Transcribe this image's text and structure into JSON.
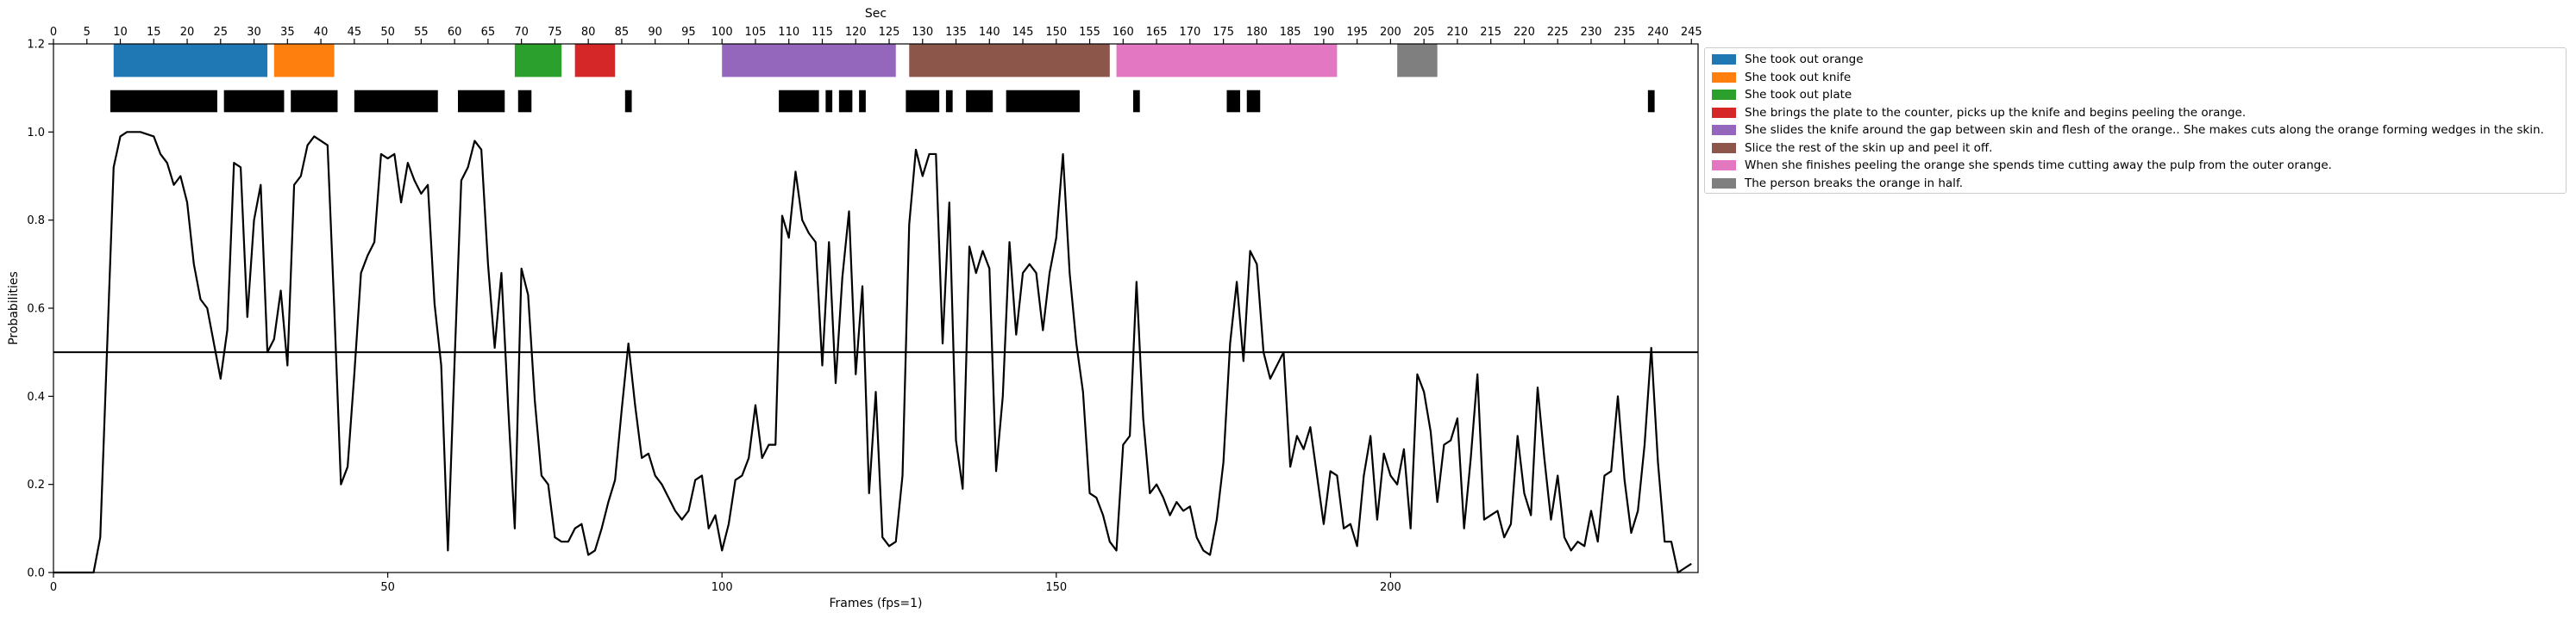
{
  "chart_data": {
    "type": "line",
    "title": "",
    "xlabel": "Frames (fps=1)",
    "ylabel": "Probabilities",
    "top_xlabel": "Sec",
    "xlim": [
      0,
      246
    ],
    "ylim": [
      0,
      1.2
    ],
    "x_ticks": [
      0,
      50,
      100,
      150,
      200
    ],
    "y_ticks": [
      "0.0",
      "0.2",
      "0.4",
      "0.6",
      "0.8",
      "1.0",
      "1.2"
    ],
    "top_ticks": [
      0,
      5,
      10,
      15,
      20,
      25,
      30,
      35,
      40,
      45,
      50,
      55,
      60,
      65,
      70,
      75,
      80,
      85,
      90,
      95,
      100,
      105,
      110,
      115,
      120,
      125,
      130,
      135,
      140,
      145,
      150,
      155,
      160,
      165,
      170,
      175,
      180,
      185,
      190,
      195,
      200,
      205,
      210,
      215,
      220,
      225,
      230,
      235,
      240,
      245
    ],
    "threshold": 0.5,
    "grid": false,
    "legend_position": "outside-right",
    "line_color": "#000000",
    "probabilities": [
      [
        0,
        0.0
      ],
      [
        6,
        0.0
      ],
      [
        7,
        0.08
      ],
      [
        8,
        0.5
      ],
      [
        9,
        0.92
      ],
      [
        10,
        0.99
      ],
      [
        11,
        1.0
      ],
      [
        13,
        1.0
      ],
      [
        15,
        0.99
      ],
      [
        16,
        0.95
      ],
      [
        17,
        0.93
      ],
      [
        18,
        0.88
      ],
      [
        19,
        0.9
      ],
      [
        20,
        0.84
      ],
      [
        21,
        0.7
      ],
      [
        22,
        0.62
      ],
      [
        23,
        0.6
      ],
      [
        24,
        0.52
      ],
      [
        25,
        0.44
      ],
      [
        26,
        0.55
      ],
      [
        27,
        0.93
      ],
      [
        28,
        0.92
      ],
      [
        29,
        0.58
      ],
      [
        30,
        0.8
      ],
      [
        31,
        0.88
      ],
      [
        32,
        0.5
      ],
      [
        33,
        0.53
      ],
      [
        34,
        0.64
      ],
      [
        35,
        0.47
      ],
      [
        36,
        0.88
      ],
      [
        37,
        0.9
      ],
      [
        38,
        0.97
      ],
      [
        39,
        0.99
      ],
      [
        40,
        0.98
      ],
      [
        41,
        0.97
      ],
      [
        42,
        0.6
      ],
      [
        43,
        0.2
      ],
      [
        44,
        0.24
      ],
      [
        45,
        0.45
      ],
      [
        46,
        0.68
      ],
      [
        47,
        0.72
      ],
      [
        48,
        0.75
      ],
      [
        49,
        0.95
      ],
      [
        50,
        0.94
      ],
      [
        51,
        0.95
      ],
      [
        52,
        0.84
      ],
      [
        53,
        0.93
      ],
      [
        54,
        0.89
      ],
      [
        55,
        0.86
      ],
      [
        56,
        0.88
      ],
      [
        57,
        0.61
      ],
      [
        58,
        0.47
      ],
      [
        59,
        0.05
      ],
      [
        60,
        0.48
      ],
      [
        61,
        0.89
      ],
      [
        62,
        0.92
      ],
      [
        63,
        0.98
      ],
      [
        64,
        0.96
      ],
      [
        65,
        0.7
      ],
      [
        66,
        0.51
      ],
      [
        67,
        0.68
      ],
      [
        68,
        0.38
      ],
      [
        69,
        0.1
      ],
      [
        70,
        0.69
      ],
      [
        71,
        0.63
      ],
      [
        72,
        0.39
      ],
      [
        73,
        0.22
      ],
      [
        74,
        0.2
      ],
      [
        75,
        0.08
      ],
      [
        76,
        0.07
      ],
      [
        77,
        0.07
      ],
      [
        78,
        0.1
      ],
      [
        79,
        0.11
      ],
      [
        80,
        0.04
      ],
      [
        81,
        0.05
      ],
      [
        82,
        0.1
      ],
      [
        83,
        0.16
      ],
      [
        84,
        0.21
      ],
      [
        85,
        0.37
      ],
      [
        86,
        0.52
      ],
      [
        87,
        0.38
      ],
      [
        88,
        0.26
      ],
      [
        89,
        0.27
      ],
      [
        90,
        0.22
      ],
      [
        91,
        0.2
      ],
      [
        92,
        0.17
      ],
      [
        93,
        0.14
      ],
      [
        94,
        0.12
      ],
      [
        95,
        0.14
      ],
      [
        96,
        0.21
      ],
      [
        97,
        0.22
      ],
      [
        98,
        0.1
      ],
      [
        99,
        0.13
      ],
      [
        100,
        0.05
      ],
      [
        101,
        0.11
      ],
      [
        102,
        0.21
      ],
      [
        103,
        0.22
      ],
      [
        104,
        0.26
      ],
      [
        105,
        0.38
      ],
      [
        106,
        0.26
      ],
      [
        107,
        0.29
      ],
      [
        108,
        0.29
      ],
      [
        109,
        0.81
      ],
      [
        110,
        0.76
      ],
      [
        111,
        0.91
      ],
      [
        112,
        0.8
      ],
      [
        113,
        0.77
      ],
      [
        114,
        0.75
      ],
      [
        115,
        0.47
      ],
      [
        116,
        0.75
      ],
      [
        117,
        0.43
      ],
      [
        118,
        0.67
      ],
      [
        119,
        0.82
      ],
      [
        120,
        0.45
      ],
      [
        121,
        0.65
      ],
      [
        122,
        0.18
      ],
      [
        123,
        0.41
      ],
      [
        124,
        0.08
      ],
      [
        125,
        0.06
      ],
      [
        126,
        0.07
      ],
      [
        127,
        0.22
      ],
      [
        128,
        0.79
      ],
      [
        129,
        0.96
      ],
      [
        130,
        0.9
      ],
      [
        131,
        0.95
      ],
      [
        132,
        0.95
      ],
      [
        133,
        0.52
      ],
      [
        134,
        0.84
      ],
      [
        135,
        0.3
      ],
      [
        136,
        0.19
      ],
      [
        137,
        0.74
      ],
      [
        138,
        0.68
      ],
      [
        139,
        0.73
      ],
      [
        140,
        0.69
      ],
      [
        141,
        0.23
      ],
      [
        142,
        0.4
      ],
      [
        143,
        0.75
      ],
      [
        144,
        0.54
      ],
      [
        145,
        0.68
      ],
      [
        146,
        0.7
      ],
      [
        147,
        0.68
      ],
      [
        148,
        0.55
      ],
      [
        149,
        0.68
      ],
      [
        150,
        0.76
      ],
      [
        151,
        0.95
      ],
      [
        152,
        0.68
      ],
      [
        153,
        0.52
      ],
      [
        154,
        0.41
      ],
      [
        155,
        0.18
      ],
      [
        156,
        0.17
      ],
      [
        157,
        0.13
      ],
      [
        158,
        0.07
      ],
      [
        159,
        0.05
      ],
      [
        160,
        0.29
      ],
      [
        161,
        0.31
      ],
      [
        162,
        0.66
      ],
      [
        163,
        0.35
      ],
      [
        164,
        0.18
      ],
      [
        165,
        0.2
      ],
      [
        166,
        0.17
      ],
      [
        167,
        0.13
      ],
      [
        168,
        0.16
      ],
      [
        169,
        0.14
      ],
      [
        170,
        0.15
      ],
      [
        171,
        0.08
      ],
      [
        172,
        0.05
      ],
      [
        173,
        0.04
      ],
      [
        174,
        0.12
      ],
      [
        175,
        0.25
      ],
      [
        176,
        0.52
      ],
      [
        177,
        0.66
      ],
      [
        178,
        0.48
      ],
      [
        179,
        0.73
      ],
      [
        180,
        0.7
      ],
      [
        181,
        0.5
      ],
      [
        182,
        0.44
      ],
      [
        183,
        0.47
      ],
      [
        184,
        0.5
      ],
      [
        185,
        0.24
      ],
      [
        186,
        0.31
      ],
      [
        187,
        0.28
      ],
      [
        188,
        0.33
      ],
      [
        189,
        0.22
      ],
      [
        190,
        0.11
      ],
      [
        191,
        0.23
      ],
      [
        192,
        0.22
      ],
      [
        193,
        0.1
      ],
      [
        194,
        0.11
      ],
      [
        195,
        0.06
      ],
      [
        196,
        0.22
      ],
      [
        197,
        0.31
      ],
      [
        198,
        0.12
      ],
      [
        199,
        0.27
      ],
      [
        200,
        0.22
      ],
      [
        201,
        0.2
      ],
      [
        202,
        0.28
      ],
      [
        203,
        0.1
      ],
      [
        204,
        0.45
      ],
      [
        205,
        0.41
      ],
      [
        206,
        0.32
      ],
      [
        207,
        0.16
      ],
      [
        208,
        0.29
      ],
      [
        209,
        0.3
      ],
      [
        210,
        0.35
      ],
      [
        211,
        0.1
      ],
      [
        212,
        0.26
      ],
      [
        213,
        0.45
      ],
      [
        214,
        0.12
      ],
      [
        215,
        0.13
      ],
      [
        216,
        0.14
      ],
      [
        217,
        0.08
      ],
      [
        218,
        0.11
      ],
      [
        219,
        0.31
      ],
      [
        220,
        0.18
      ],
      [
        221,
        0.13
      ],
      [
        222,
        0.42
      ],
      [
        223,
        0.26
      ],
      [
        224,
        0.12
      ],
      [
        225,
        0.22
      ],
      [
        226,
        0.08
      ],
      [
        227,
        0.05
      ],
      [
        228,
        0.07
      ],
      [
        229,
        0.06
      ],
      [
        230,
        0.14
      ],
      [
        231,
        0.07
      ],
      [
        232,
        0.22
      ],
      [
        233,
        0.23
      ],
      [
        234,
        0.4
      ],
      [
        235,
        0.21
      ],
      [
        236,
        0.09
      ],
      [
        237,
        0.14
      ],
      [
        238,
        0.29
      ],
      [
        239,
        0.51
      ],
      [
        240,
        0.25
      ],
      [
        241,
        0.07
      ],
      [
        242,
        0.07
      ],
      [
        243,
        0.0
      ],
      [
        244,
        0.01
      ],
      [
        245,
        0.02
      ]
    ],
    "segments": [
      {
        "name": "She took out orange",
        "color": "#1f77b4",
        "start": 9,
        "end": 32
      },
      {
        "name": "She took out knife",
        "color": "#ff7f0e",
        "start": 33,
        "end": 42
      },
      {
        "name": "She took out plate",
        "color": "#2ca02c",
        "start": 69,
        "end": 76
      },
      {
        "name": "She brings the plate to the counter, picks up the knife and begins peeling the orange.",
        "color": "#d62728",
        "start": 78,
        "end": 84
      },
      {
        "name": "She slides the knife around the gap between skin and flesh of the orange.. She makes cuts along the orange forming wedges in the skin.",
        "color": "#9467bd",
        "start": 100,
        "end": 126
      },
      {
        "name": "Slice the rest of the skin up and peel it off.",
        "color": "#8c564b",
        "start": 128,
        "end": 158
      },
      {
        "name": "When she finishes peeling the orange she spends time cutting away the pulp from the outer orange.",
        "color": "#e377c2",
        "start": 159,
        "end": 192
      },
      {
        "name": "The person breaks the orange in half.",
        "color": "#7f7f7f",
        "start": 201,
        "end": 207
      }
    ],
    "predicted_intervals": [
      [
        8.5,
        24.5
      ],
      [
        25.5,
        34.5
      ],
      [
        35.5,
        42.5
      ],
      [
        45,
        57.5
      ],
      [
        60.5,
        67.5
      ],
      [
        69.5,
        71.5
      ],
      [
        85.5,
        86.5
      ],
      [
        108.5,
        114.5
      ],
      [
        115.5,
        116.5
      ],
      [
        117.5,
        119.5
      ],
      [
        120.5,
        121.5
      ],
      [
        127.5,
        132.5
      ],
      [
        133.5,
        134.5
      ],
      [
        136.5,
        140.5
      ],
      [
        142.5,
        153.5
      ],
      [
        161.5,
        162.5
      ],
      [
        175.5,
        177.5
      ],
      [
        178.5,
        180.5
      ],
      [
        238.5,
        239.5
      ]
    ]
  }
}
